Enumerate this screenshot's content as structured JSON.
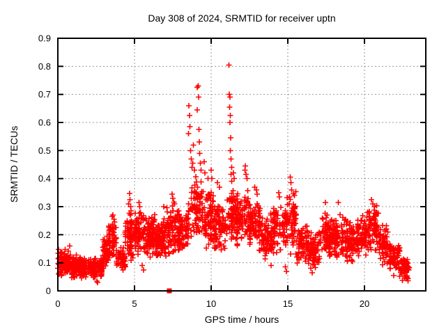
{
  "window": {
    "background": "#ffffff"
  },
  "chart_data": {
    "type": "scatter",
    "title": "Day 308 of 2024, SRMTID for receiver uptn",
    "xlabel": "GPS time / hours",
    "ylabel": "SRMTID / TECUs",
    "xlim": [
      0,
      24
    ],
    "ylim": [
      0,
      0.9
    ],
    "xticks": [
      [
        0,
        "0"
      ],
      [
        5,
        "5"
      ],
      [
        10,
        "10"
      ],
      [
        15,
        "15"
      ],
      [
        20,
        "20"
      ]
    ],
    "yticks": [
      [
        0,
        "0"
      ],
      [
        0.1,
        "0.1"
      ],
      [
        0.2,
        "0.2"
      ],
      [
        0.3,
        "0.3"
      ],
      [
        0.4,
        "0.4"
      ],
      [
        0.5,
        "0.5"
      ],
      [
        0.6,
        "0.6"
      ],
      [
        0.7,
        "0.7"
      ],
      [
        0.8,
        "0.8"
      ],
      [
        0.9,
        "0.9"
      ]
    ],
    "grid": "dashed-major-both-axes",
    "legend": "none",
    "marker": "plus",
    "marker_color": "#ff0000",
    "grid_color": "#9a9a9a",
    "border_color": "#000000",
    "seed": 308,
    "band_profile": [
      [
        0.0,
        0.8,
        0.05,
        0.15,
        110
      ],
      [
        0.8,
        1.6,
        0.04,
        0.13,
        110
      ],
      [
        1.6,
        2.4,
        0.035,
        0.12,
        110
      ],
      [
        2.4,
        2.9,
        0.04,
        0.12,
        65
      ],
      [
        2.9,
        3.3,
        0.08,
        0.2,
        55
      ],
      [
        3.3,
        3.8,
        0.11,
        0.25,
        60
      ],
      [
        3.8,
        4.4,
        0.07,
        0.16,
        55
      ],
      [
        4.4,
        5.0,
        0.09,
        0.3,
        70
      ],
      [
        5.0,
        5.7,
        0.12,
        0.3,
        85
      ],
      [
        5.7,
        6.4,
        0.11,
        0.28,
        90
      ],
      [
        6.4,
        7.1,
        0.1,
        0.27,
        90
      ],
      [
        7.1,
        7.9,
        0.12,
        0.32,
        95
      ],
      [
        7.9,
        8.5,
        0.14,
        0.3,
        75
      ],
      [
        8.5,
        9.4,
        0.17,
        0.42,
        85
      ],
      [
        9.4,
        10.2,
        0.14,
        0.38,
        85
      ],
      [
        10.2,
        11.0,
        0.14,
        0.32,
        85
      ],
      [
        11.0,
        11.6,
        0.16,
        0.38,
        65
      ],
      [
        11.6,
        12.5,
        0.16,
        0.36,
        95
      ],
      [
        12.5,
        13.3,
        0.14,
        0.33,
        90
      ],
      [
        13.3,
        14.1,
        0.11,
        0.28,
        85
      ],
      [
        14.1,
        14.9,
        0.12,
        0.33,
        80
      ],
      [
        14.9,
        15.6,
        0.12,
        0.37,
        75
      ],
      [
        15.6,
        16.3,
        0.09,
        0.24,
        75
      ],
      [
        16.3,
        17.1,
        0.08,
        0.22,
        80
      ],
      [
        17.1,
        17.9,
        0.11,
        0.29,
        85
      ],
      [
        17.9,
        18.7,
        0.11,
        0.28,
        85
      ],
      [
        18.7,
        19.5,
        0.1,
        0.26,
        80
      ],
      [
        19.5,
        20.2,
        0.12,
        0.28,
        75
      ],
      [
        20.2,
        20.9,
        0.13,
        0.32,
        75
      ],
      [
        20.9,
        21.6,
        0.09,
        0.24,
        70
      ],
      [
        21.6,
        22.3,
        0.06,
        0.17,
        70
      ],
      [
        22.3,
        22.9,
        0.035,
        0.12,
        65
      ]
    ],
    "spikes": [
      [
        0.77,
        0.16
      ],
      [
        2.55,
        0.035
      ],
      [
        2.6,
        0.03
      ],
      [
        3.55,
        0.265
      ],
      [
        3.6,
        0.27
      ],
      [
        3.65,
        0.255
      ],
      [
        3.7,
        0.245
      ],
      [
        4.25,
        0.075
      ],
      [
        4.62,
        0.31
      ],
      [
        4.68,
        0.347
      ],
      [
        4.7,
        0.325
      ],
      [
        4.74,
        0.3
      ],
      [
        4.78,
        0.285
      ],
      [
        5.3,
        0.315
      ],
      [
        5.35,
        0.3
      ],
      [
        5.5,
        0.09
      ],
      [
        5.6,
        0.075
      ],
      [
        6.9,
        0.3
      ],
      [
        7.45,
        0.345
      ],
      [
        7.5,
        0.33
      ],
      [
        7.62,
        0.31
      ],
      [
        8.52,
        0.56
      ],
      [
        8.55,
        0.66
      ],
      [
        8.58,
        0.625
      ],
      [
        8.62,
        0.585
      ],
      [
        8.65,
        0.5
      ],
      [
        8.7,
        0.47
      ],
      [
        8.74,
        0.44
      ],
      [
        8.8,
        0.455
      ],
      [
        8.85,
        0.52
      ],
      [
        8.9,
        0.43
      ],
      [
        9.08,
        0.645
      ],
      [
        9.1,
        0.725
      ],
      [
        9.15,
        0.73
      ],
      [
        9.18,
        0.69
      ],
      [
        9.2,
        0.575
      ],
      [
        9.22,
        0.53
      ],
      [
        9.26,
        0.49
      ],
      [
        9.3,
        0.455
      ],
      [
        9.35,
        0.43
      ],
      [
        9.55,
        0.46
      ],
      [
        9.6,
        0.42
      ],
      [
        9.8,
        0.4
      ],
      [
        10.0,
        0.43
      ],
      [
        10.05,
        0.4
      ],
      [
        10.4,
        0.385
      ],
      [
        10.55,
        0.37
      ],
      [
        11.15,
        0.805
      ],
      [
        11.18,
        0.7
      ],
      [
        11.22,
        0.69
      ],
      [
        11.2,
        0.655
      ],
      [
        11.25,
        0.625
      ],
      [
        11.23,
        0.6
      ],
      [
        11.28,
        0.545
      ],
      [
        11.26,
        0.5
      ],
      [
        11.3,
        0.47
      ],
      [
        11.33,
        0.44
      ],
      [
        11.29,
        0.415
      ],
      [
        11.35,
        0.39
      ],
      [
        11.45,
        0.42
      ],
      [
        11.5,
        0.4
      ],
      [
        12.2,
        0.43
      ],
      [
        12.22,
        0.445
      ],
      [
        12.27,
        0.415
      ],
      [
        12.35,
        0.4
      ],
      [
        12.85,
        0.37
      ],
      [
        12.95,
        0.36
      ],
      [
        13.0,
        0.345
      ],
      [
        13.9,
        0.09
      ],
      [
        14.4,
        0.35
      ],
      [
        14.45,
        0.335
      ],
      [
        14.85,
        0.085
      ],
      [
        14.9,
        0.07
      ],
      [
        15.15,
        0.405
      ],
      [
        15.2,
        0.385
      ],
      [
        15.25,
        0.36
      ],
      [
        16.5,
        0.08
      ],
      [
        16.6,
        0.065
      ],
      [
        17.45,
        0.315
      ],
      [
        18.3,
        0.315
      ],
      [
        20.45,
        0.325
      ],
      [
        20.55,
        0.31
      ],
      [
        21.9,
        0.055
      ],
      [
        22.75,
        0.05
      ],
      [
        22.8,
        0.045
      ]
    ],
    "special_markers": [
      {
        "x": 7.27,
        "y": 0,
        "marker": "filled-square",
        "color": "#ff0000"
      }
    ]
  }
}
